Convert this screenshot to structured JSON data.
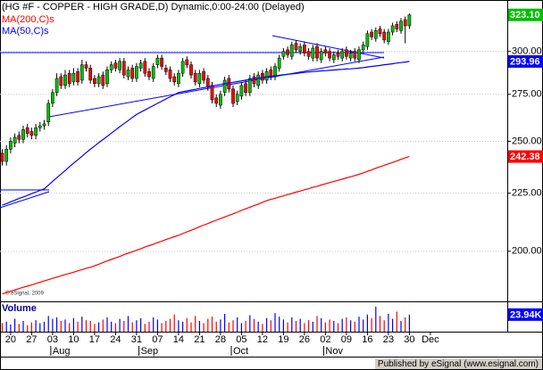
{
  "chart_data": {
    "type": "candlestick",
    "title": "(HG #F - COPPER - HIGH GRADE,D) Dynamic,0:00-24:00 (Delayed)",
    "watermark": "© eSignal, 2009",
    "footer": "Published by eSignal (www.esignal.com)",
    "log_scale": true,
    "grid": true,
    "ylim": [
      181,
      333
    ],
    "yticks": [
      {
        "value": 200,
        "label": "200.00"
      },
      {
        "value": 225,
        "label": "225.00"
      },
      {
        "value": 250,
        "label": "250.00"
      },
      {
        "value": 275,
        "label": "275.00"
      },
      {
        "value": 300,
        "label": "300.00"
      }
    ],
    "xticks": [
      {
        "value": 2,
        "label": "20"
      },
      {
        "value": 7,
        "label": "27"
      },
      {
        "value": 12,
        "label": "03"
      },
      {
        "value": 17,
        "label": "10"
      },
      {
        "value": 22,
        "label": "17"
      },
      {
        "value": 27,
        "label": "24"
      },
      {
        "value": 32,
        "label": "31"
      },
      {
        "value": 37,
        "label": "07"
      },
      {
        "value": 42,
        "label": "14"
      },
      {
        "value": 47,
        "label": "21"
      },
      {
        "value": 52,
        "label": "28"
      },
      {
        "value": 57,
        "label": "05"
      },
      {
        "value": 62,
        "label": "12"
      },
      {
        "value": 67,
        "label": "19"
      },
      {
        "value": 72,
        "label": "26"
      },
      {
        "value": 77,
        "label": "02"
      },
      {
        "value": 82,
        "label": "09"
      },
      {
        "value": 87,
        "label": "16"
      },
      {
        "value": 92,
        "label": "23"
      },
      {
        "value": 97,
        "label": "30"
      },
      {
        "value": 102,
        "label": "Dec"
      }
    ],
    "month_ticks": [
      {
        "value": 12,
        "label": "Aug"
      },
      {
        "value": 33,
        "label": "Sep"
      },
      {
        "value": 55,
        "label": "Oct"
      },
      {
        "value": 77,
        "label": "Nov"
      }
    ],
    "up_color": "#00c000",
    "down_color": "#ff0000",
    "open": [
      244,
      240,
      246,
      249,
      253,
      251,
      257,
      255,
      253,
      257,
      258,
      260,
      270,
      276,
      285,
      280,
      287,
      282,
      288,
      283,
      292,
      290,
      284,
      281,
      286,
      281,
      289,
      293,
      289,
      294,
      285,
      290,
      284,
      290,
      294,
      288,
      284,
      292,
      296,
      290,
      289,
      285,
      281,
      287,
      295,
      292,
      287,
      281,
      288,
      284,
      280,
      273,
      269,
      276,
      284,
      278,
      271,
      274,
      281,
      276,
      285,
      280,
      287,
      283,
      289,
      285,
      290,
      297,
      301,
      297,
      305,
      300,
      304,
      300,
      296,
      303,
      295,
      301,
      300,
      295,
      299,
      296,
      301,
      296,
      300,
      295,
      301,
      303,
      312,
      308,
      314,
      312,
      306,
      312,
      317,
      313,
      320,
      316
    ],
    "high": [
      246,
      248,
      252,
      254,
      255,
      258,
      259,
      257,
      259,
      260,
      261,
      272,
      278,
      287,
      287,
      289,
      289,
      290,
      290,
      295,
      294,
      292,
      286,
      287,
      288,
      291,
      294,
      295,
      296,
      296,
      291,
      292,
      293,
      295,
      296,
      290,
      293,
      298,
      298,
      292,
      291,
      287,
      289,
      296,
      297,
      294,
      289,
      289,
      290,
      286,
      282,
      275,
      277,
      285,
      286,
      280,
      277,
      282,
      283,
      286,
      287,
      288,
      289,
      290,
      291,
      293,
      298,
      302,
      303,
      306,
      307,
      305,
      306,
      302,
      304,
      305,
      302,
      303,
      302,
      300,
      301,
      302,
      303,
      301,
      302,
      303,
      306,
      313,
      314,
      315,
      316,
      314,
      314,
      318,
      319,
      321,
      322,
      324
    ],
    "low": [
      238,
      238,
      244,
      247,
      249,
      249,
      252,
      251,
      251,
      255,
      256,
      258,
      268,
      274,
      278,
      278,
      279,
      280,
      280,
      281,
      288,
      281,
      279,
      279,
      278,
      279,
      287,
      288,
      287,
      284,
      283,
      282,
      282,
      288,
      285,
      283,
      282,
      290,
      289,
      286,
      282,
      280,
      279,
      285,
      290,
      284,
      280,
      279,
      281,
      277,
      270,
      268,
      267,
      274,
      276,
      268,
      269,
      272,
      274,
      274,
      279,
      278,
      281,
      281,
      283,
      283,
      288,
      295,
      296,
      295,
      299,
      298,
      297,
      295,
      294,
      294,
      293,
      297,
      294,
      293,
      295,
      294,
      295,
      294,
      294,
      293,
      299,
      301,
      307,
      306,
      309,
      305,
      304,
      310,
      312,
      311,
      305,
      314
    ],
    "close": [
      240,
      246,
      250,
      252,
      251,
      256,
      254,
      253,
      257,
      258,
      259,
      270,
      276,
      284,
      280,
      286,
      281,
      287,
      282,
      292,
      290,
      283,
      281,
      285,
      280,
      289,
      292,
      290,
      294,
      286,
      289,
      284,
      291,
      293,
      287,
      285,
      291,
      296,
      291,
      288,
      284,
      282,
      287,
      294,
      292,
      286,
      282,
      287,
      283,
      279,
      272,
      270,
      275,
      283,
      278,
      270,
      275,
      280,
      276,
      284,
      281,
      286,
      283,
      288,
      285,
      291,
      296,
      300,
      298,
      304,
      301,
      303,
      299,
      297,
      302,
      296,
      300,
      299,
      296,
      298,
      297,
      300,
      297,
      299,
      296,
      301,
      304,
      311,
      309,
      313,
      311,
      307,
      312,
      316,
      314,
      319,
      316,
      323.1
    ],
    "close_label": {
      "value": 323.1,
      "label": "323.10"
    },
    "series": [
      {
        "name": "MA(200,C)s",
        "color": "#ff0000",
        "last_label": {
          "value": 242.38,
          "label": "242.38"
        },
        "values": [
          183.4,
          183.9,
          184.4,
          184.9,
          185.4,
          185.9,
          186.3,
          186.8,
          187.3,
          187.8,
          188.3,
          188.8,
          189.3,
          189.8,
          190.3,
          190.8,
          191.2,
          191.7,
          192.2,
          192.7,
          193.2,
          193.6,
          194.2,
          194.8,
          195.5,
          196.1,
          196.7,
          197.3,
          197.9,
          198.6,
          199.2,
          199.8,
          200.4,
          201.0,
          201.7,
          202.3,
          202.9,
          203.5,
          204.1,
          204.8,
          205.4,
          206.0,
          206.6,
          207.3,
          208.0,
          208.7,
          209.4,
          210.2,
          210.9,
          211.6,
          212.3,
          213.0,
          213.7,
          214.4,
          215.1,
          215.8,
          216.5,
          217.3,
          218.0,
          218.7,
          219.4,
          220.1,
          220.9,
          221.6,
          222.2,
          222.7,
          223.3,
          223.8,
          224.4,
          224.9,
          225.5,
          226.0,
          226.6,
          227.1,
          227.7,
          228.2,
          228.8,
          229.3,
          229.9,
          230.4,
          231.0,
          231.5,
          232.1,
          232.6,
          233.2,
          233.8,
          234.5,
          235.2,
          235.9,
          236.7,
          237.4,
          238.1,
          238.8,
          239.5,
          240.2,
          241.0,
          241.7,
          242.38
        ]
      },
      {
        "name": "MA(50,C)s",
        "color": "#0000ff",
        "last_label": {
          "value": 293.96,
          "label": "293.96"
        },
        "values": [
          219.6,
          220.3,
          221.1,
          221.8,
          222.6,
          223.3,
          224.0,
          224.8,
          225.5,
          226.3,
          227.0,
          228.7,
          230.5,
          232.2,
          233.9,
          235.6,
          237.4,
          239.1,
          240.8,
          242.5,
          244.3,
          246.0,
          247.6,
          249.3,
          250.9,
          252.5,
          254.2,
          255.8,
          257.5,
          259.1,
          260.7,
          262.4,
          264.0,
          265.2,
          266.4,
          267.6,
          268.8,
          270.0,
          271.2,
          272.4,
          273.6,
          274.8,
          276.0,
          276.5,
          276.9,
          277.4,
          277.8,
          278.3,
          278.7,
          279.2,
          279.6,
          280.1,
          280.5,
          281.0,
          281.4,
          281.8,
          282.2,
          282.6,
          283.0,
          283.4,
          283.8,
          284.2,
          284.6,
          285.0,
          285.3,
          285.5,
          285.8,
          286.1,
          286.4,
          286.6,
          286.9,
          287.2,
          287.5,
          287.7,
          288.0,
          288.2,
          288.4,
          288.5,
          288.7,
          288.9,
          289.1,
          289.3,
          289.5,
          289.6,
          289.8,
          290.0,
          290.3,
          290.7,
          291.0,
          291.3,
          291.6,
          292.0,
          292.3,
          292.6,
          293.0,
          293.3,
          293.6,
          293.96
        ]
      }
    ],
    "volume": {
      "name": "Volume",
      "ylim": [
        0,
        40
      ],
      "up_color": "#0000ff",
      "down_color": "#ff0000",
      "last_label": {
        "value": 23.94,
        "label": "23.94K"
      },
      "values": [
        12,
        14,
        10,
        18,
        11,
        15,
        9,
        13,
        16,
        12,
        14,
        22,
        18,
        20,
        15,
        17,
        12,
        19,
        14,
        21,
        16,
        15,
        11,
        13,
        17,
        20,
        14,
        12,
        18,
        15,
        22,
        13,
        16,
        19,
        11,
        14,
        20,
        17,
        12,
        15,
        18,
        24,
        16,
        14,
        19,
        13,
        22,
        15,
        12,
        18,
        21,
        14,
        17,
        25,
        13,
        16,
        20,
        12,
        15,
        23,
        18,
        14,
        11,
        19,
        16,
        26,
        21,
        17,
        13,
        20,
        15,
        18,
        12,
        16,
        14,
        22,
        19,
        13,
        17,
        15,
        12,
        18,
        20,
        16,
        14,
        21,
        17,
        24,
        19,
        35,
        22,
        16,
        25,
        18,
        28,
        15,
        20,
        23.94
      ]
    }
  }
}
